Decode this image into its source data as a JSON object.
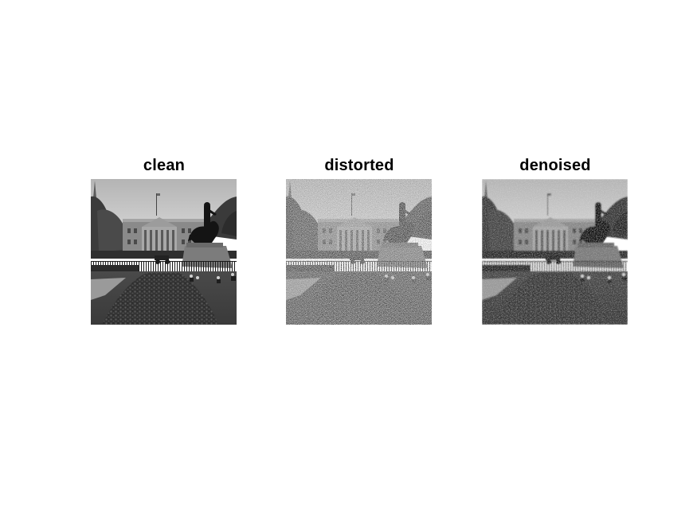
{
  "figure": {
    "panels": [
      {
        "id": "clean",
        "title": "clean",
        "noise": 0.0,
        "blur": 0.0
      },
      {
        "id": "distorted",
        "title": "distorted",
        "noise": 1.0,
        "blur": 0.0
      },
      {
        "id": "denoised",
        "title": "denoised",
        "noise": 0.25,
        "blur": 1.0
      }
    ]
  }
}
